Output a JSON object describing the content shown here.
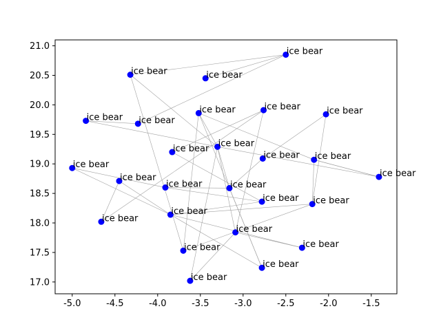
{
  "chart_data": {
    "type": "scatter",
    "title": "",
    "xlabel": "",
    "ylabel": "",
    "xlim": [
      -5.2,
      -1.2
    ],
    "ylim": [
      16.8,
      21.1
    ],
    "xticks": [
      "-5.0",
      "-4.5",
      "-4.0",
      "-3.5",
      "-3.0",
      "-2.5",
      "-2.0",
      "-1.5"
    ],
    "yticks": [
      "17.0",
      "17.5",
      "18.0",
      "18.5",
      "19.0",
      "19.5",
      "20.0",
      "20.5",
      "21.0"
    ],
    "grid": false,
    "point_color": "#0000ff",
    "edge_color": "#a0a0a0",
    "points": [
      {
        "x": -2.5,
        "y": 20.85,
        "label": "ice bear"
      },
      {
        "x": -4.32,
        "y": 20.51,
        "label": "ice bear"
      },
      {
        "x": -3.44,
        "y": 20.45,
        "label": "ice bear"
      },
      {
        "x": -4.84,
        "y": 19.73,
        "label": "ice bear"
      },
      {
        "x": -4.23,
        "y": 19.68,
        "label": "ice bear"
      },
      {
        "x": -3.52,
        "y": 19.86,
        "label": "ice bear"
      },
      {
        "x": -2.76,
        "y": 19.91,
        "label": "ice bear"
      },
      {
        "x": -2.03,
        "y": 19.84,
        "label": "ice bear"
      },
      {
        "x": -3.3,
        "y": 19.29,
        "label": "ice bear"
      },
      {
        "x": -3.83,
        "y": 19.2,
        "label": "ice bear"
      },
      {
        "x": -2.77,
        "y": 19.09,
        "label": "ice bear"
      },
      {
        "x": -2.17,
        "y": 19.07,
        "label": "ice bear"
      },
      {
        "x": -1.41,
        "y": 18.78,
        "label": "ice bear"
      },
      {
        "x": -5.0,
        "y": 18.93,
        "label": "ice bear"
      },
      {
        "x": -4.45,
        "y": 18.71,
        "label": "ice bear"
      },
      {
        "x": -3.91,
        "y": 18.6,
        "label": "ice bear"
      },
      {
        "x": -3.16,
        "y": 18.59,
        "label": "ice bear"
      },
      {
        "x": -2.78,
        "y": 18.36,
        "label": "ice bear"
      },
      {
        "x": -2.19,
        "y": 18.32,
        "label": "ice bear"
      },
      {
        "x": -4.66,
        "y": 18.02,
        "label": "ice bear"
      },
      {
        "x": -3.85,
        "y": 18.14,
        "label": "ice bear"
      },
      {
        "x": -3.09,
        "y": 17.84,
        "label": "ice bear"
      },
      {
        "x": -2.31,
        "y": 17.58,
        "label": "ice bear"
      },
      {
        "x": -3.7,
        "y": 17.53,
        "label": "ice bear"
      },
      {
        "x": -2.78,
        "y": 17.24,
        "label": "ice bear"
      },
      {
        "x": -3.62,
        "y": 17.02,
        "label": "ice bear"
      }
    ],
    "edges": [
      [
        0,
        2
      ],
      [
        0,
        4
      ],
      [
        1,
        8
      ],
      [
        1,
        0
      ],
      [
        1,
        23
      ],
      [
        3,
        4
      ],
      [
        3,
        8
      ],
      [
        5,
        8
      ],
      [
        5,
        24
      ],
      [
        5,
        23
      ],
      [
        6,
        21
      ],
      [
        6,
        19
      ],
      [
        7,
        10
      ],
      [
        7,
        18
      ],
      [
        8,
        16
      ],
      [
        8,
        25
      ],
      [
        8,
        21
      ],
      [
        8,
        12
      ],
      [
        9,
        17
      ],
      [
        10,
        16
      ],
      [
        11,
        12
      ],
      [
        11,
        18
      ],
      [
        13,
        20
      ],
      [
        14,
        19
      ],
      [
        14,
        20
      ],
      [
        15,
        17
      ],
      [
        15,
        16
      ],
      [
        16,
        24
      ],
      [
        17,
        20
      ],
      [
        18,
        20
      ],
      [
        18,
        23
      ],
      [
        20,
        22
      ],
      [
        22,
        21
      ],
      [
        21,
        25
      ],
      [
        5,
        11
      ],
      [
        12,
        11
      ],
      [
        24,
        20
      ],
      [
        15,
        13
      ],
      [
        6,
        9
      ]
    ]
  }
}
